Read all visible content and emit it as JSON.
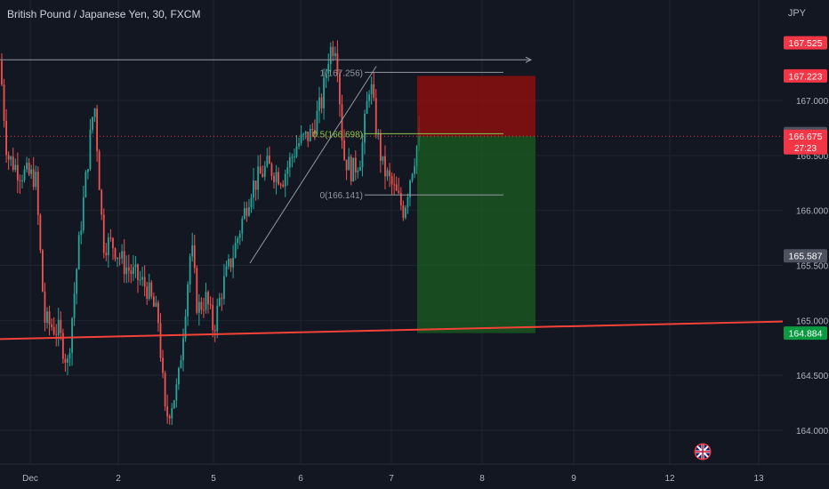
{
  "header": {
    "symbol_title": "British Pound / Japanese Yen, 30, FXCM",
    "currency": "JPY"
  },
  "flag_icon": "uk-flag-icon",
  "chart_data": {
    "type": "candlestick",
    "title": "British Pound / Japanese Yen, 30, FXCM",
    "ylim": [
      163.7,
      167.75
    ],
    "y_ticks": [
      164.0,
      164.5,
      165.0,
      165.5,
      166.0,
      166.5,
      167.0
    ],
    "x_ticks": [
      "Dec",
      "2",
      "5",
      "6",
      "7",
      "8",
      "9",
      "12",
      "13"
    ],
    "colors": {
      "background": "#131722",
      "up": "#26a69a",
      "down": "#ef5350",
      "support_line": "#f44336",
      "profit_zone": "#1b5e20",
      "loss_zone": "#8b0f0f",
      "grid": "#1f2433"
    },
    "price_labels": [
      {
        "value": "167.525",
        "price": 167.525,
        "color": "#f23645",
        "text_color": "#ffffff"
      },
      {
        "value": "167.223",
        "price": 167.223,
        "color": "#f23645",
        "text_color": "#ffffff"
      },
      {
        "value": "166.699",
        "price": 166.699,
        "color": "#4d5260",
        "text_color": "#ffffff"
      },
      {
        "value": "166.675",
        "price": 166.675,
        "color": "#f23645",
        "text_color": "#ffffff",
        "sub": "27:23"
      },
      {
        "value": "165.587",
        "price": 165.587,
        "color": "#4d5260",
        "text_color": "#ffffff"
      },
      {
        "value": "164.884",
        "price": 164.884,
        "color": "#0a9b40",
        "text_color": "#ffffff"
      }
    ],
    "fibonacci": [
      {
        "label": "1(167.256)",
        "price": 167.256
      },
      {
        "label": "0.5(166.698)",
        "price": 166.698
      },
      {
        "label": "0(166.141)",
        "price": 166.141
      }
    ],
    "position": {
      "type": "short",
      "entry": 166.675,
      "stop": 167.223,
      "target": 164.884
    },
    "support_line": {
      "start_price": 164.83,
      "end_price": 164.99
    },
    "horizontal_ray": {
      "price": 167.37
    },
    "swing_points": [
      {
        "x": "Nov 30",
        "price": 167.36
      },
      {
        "x": "Dec 1",
        "price": 164.6
      },
      {
        "x": "Dec 1",
        "price": 167.0
      },
      {
        "x": "Dec 2",
        "price": 164.9
      },
      {
        "x": "Dec 4",
        "price": 164.1
      },
      {
        "x": "Dec 4",
        "price": 165.8
      },
      {
        "x": "Dec 5",
        "price": 164.9
      },
      {
        "x": "Dec 5",
        "price": 165.6
      },
      {
        "x": "Dec 6",
        "price": 166.7
      },
      {
        "x": "Dec 6",
        "price": 167.5
      },
      {
        "x": "Dec 6",
        "price": 166.4
      },
      {
        "x": "Dec 6",
        "price": 167.2
      },
      {
        "x": "Dec 7",
        "price": 166.0
      },
      {
        "x": "Dec 7",
        "price": 166.7
      }
    ]
  }
}
